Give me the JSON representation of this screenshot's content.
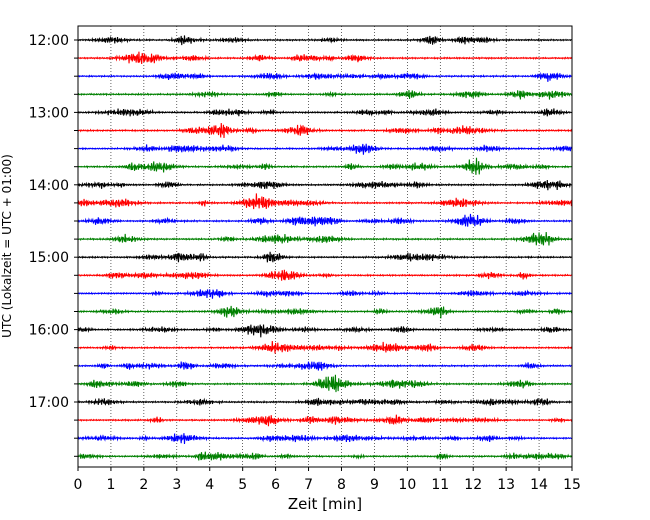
{
  "chart_data": {
    "type": "line",
    "title": "",
    "xlabel": "Zeit  [min]",
    "ylabel": "UTC (Lokalzeit = UTC + 01:00)",
    "xlim": [
      0,
      15
    ],
    "x_ticks": [
      "0",
      "1",
      "2",
      "3",
      "4",
      "5",
      "6",
      "7",
      "8",
      "9",
      "10",
      "11",
      "12",
      "13",
      "14",
      "15"
    ],
    "y_tick_labels": [
      "12:00",
      "13:00",
      "14:00",
      "15:00",
      "16:00",
      "17:00"
    ],
    "rows": [
      "12:00",
      "12:15",
      "12:30",
      "12:45",
      "13:00",
      "13:15",
      "13:30",
      "13:45",
      "14:00",
      "14:15",
      "14:30",
      "14:45",
      "15:00",
      "15:15",
      "15:30",
      "15:45",
      "16:00",
      "16:15",
      "16:30",
      "16:45",
      "17:00",
      "17:15",
      "17:30",
      "17:45"
    ],
    "row_colors": [
      "#000000",
      "#ff0000",
      "#0000ff",
      "#008000"
    ],
    "grid": "vertical-dotted"
  }
}
